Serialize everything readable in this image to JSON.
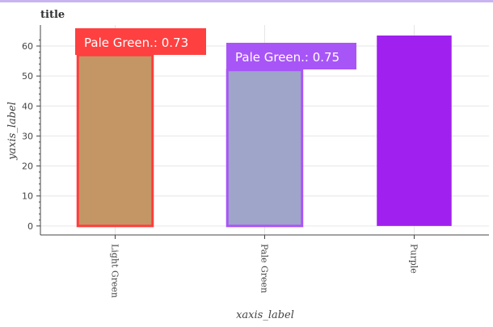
{
  "chart_data": {
    "type": "bar",
    "title": "title",
    "xlabel": "xaxis_label",
    "ylabel": "yaxis_label",
    "categories": [
      "Light Green",
      "Pale Green",
      "Purple"
    ],
    "values": [
      57,
      52,
      63.5
    ],
    "bar_colors": [
      "#c49666",
      "#9ea5c8",
      "#a020f0"
    ],
    "highlight_outlines": [
      "#ff3d3d",
      "#a855f7",
      null
    ],
    "yticks": [
      0,
      10,
      20,
      30,
      40,
      50,
      60
    ],
    "ylim": [
      -3,
      67
    ],
    "grid": true,
    "tooltips": [
      {
        "category_index": 0,
        "text": "Pale Green.: 0.73",
        "color": "#ff4040"
      },
      {
        "category_index": 1,
        "text": "Pale Green.: 0.75",
        "color": "#a855f7"
      }
    ]
  }
}
